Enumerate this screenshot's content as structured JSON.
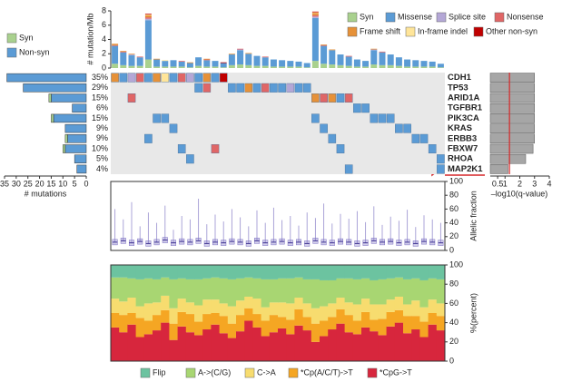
{
  "chart_data": [
    {
      "type": "bar",
      "ylabel": "# mutation/Mb",
      "ylim": [
        0,
        8
      ],
      "yticks": [
        0,
        2,
        4,
        6,
        8
      ],
      "series": [
        {
          "name": "Syn",
          "color": "#a9d18e",
          "values": [
            0.6,
            0.4,
            0.3,
            0.3,
            1.2,
            0.2,
            0.2,
            0.2,
            0.2,
            0.1,
            0.3,
            0.2,
            0.2,
            0.1,
            0.4,
            0.5,
            0.4,
            0.3,
            0.3,
            0.2,
            0.2,
            0.2,
            0.2,
            0.1,
            1.0,
            0.6,
            0.5,
            0.4,
            0.3,
            0.2,
            0.2,
            0.5,
            0.4,
            0.4,
            0.3,
            0.2,
            0.2,
            0.2,
            0.2,
            0.1
          ]
        },
        {
          "name": "Missense",
          "color": "#5b9bd5",
          "values": [
            2.5,
            1.8,
            1.5,
            1.2,
            5.5,
            1.0,
            0.8,
            0.9,
            0.7,
            0.6,
            1.2,
            0.9,
            0.8,
            0.6,
            1.5,
            2.0,
            1.6,
            1.4,
            1.2,
            1.0,
            0.9,
            0.8,
            0.7,
            0.6,
            6.0,
            2.5,
            2.0,
            1.5,
            1.3,
            1.0,
            0.8,
            2.0,
            1.8,
            1.5,
            1.2,
            1.0,
            0.9,
            0.8,
            0.7,
            0.5
          ]
        },
        {
          "name": "Splice site",
          "color": "#b4a7d6",
          "values": [
            0,
            0,
            0.1,
            0,
            0.2,
            0,
            0,
            0,
            0,
            0,
            0,
            0,
            0,
            0,
            0,
            0.1,
            0,
            0,
            0,
            0,
            0,
            0,
            0,
            0,
            0.2,
            0,
            0,
            0,
            0,
            0,
            0,
            0.1,
            0,
            0,
            0,
            0,
            0,
            0,
            0,
            0
          ]
        },
        {
          "name": "Nonsense",
          "color": "#e06666",
          "values": [
            0.1,
            0.1,
            0,
            0.1,
            0.2,
            0,
            0,
            0,
            0.1,
            0,
            0,
            0.1,
            0,
            0,
            0,
            0.1,
            0,
            0,
            0.1,
            0,
            0,
            0,
            0,
            0,
            0.2,
            0.1,
            0,
            0,
            0.1,
            0,
            0,
            0,
            0.1,
            0,
            0,
            0,
            0,
            0,
            0,
            0
          ]
        },
        {
          "name": "Frame shift",
          "color": "#e69138",
          "values": [
            0.2,
            0.1,
            0.1,
            0,
            0.3,
            0.1,
            0,
            0,
            0,
            0.1,
            0,
            0.1,
            0,
            0,
            0.1,
            0,
            0.1,
            0,
            0,
            0,
            0,
            0,
            0,
            0,
            0.3,
            0.1,
            0.1,
            0,
            0,
            0,
            0,
            0.1,
            0,
            0,
            0,
            0,
            0,
            0,
            0,
            0
          ]
        },
        {
          "name": "In-frame indel",
          "color": "#ffe599",
          "values": [
            0,
            0,
            0,
            0,
            0.1,
            0,
            0.1,
            0,
            0,
            0,
            0,
            0,
            0,
            0,
            0,
            0,
            0,
            0,
            0,
            0,
            0,
            0,
            0,
            0,
            0.1,
            0,
            0,
            0,
            0,
            0,
            0,
            0,
            0,
            0,
            0,
            0,
            0,
            0,
            0,
            0
          ]
        },
        {
          "name": "Other non-syn",
          "color": "#c00000",
          "values": [
            0,
            0,
            0,
            0,
            0.1,
            0,
            0,
            0,
            0,
            0,
            0,
            0,
            0,
            0.1,
            0,
            0,
            0,
            0,
            0,
            0,
            0,
            0,
            0,
            0,
            0.1,
            0,
            0,
            0,
            0,
            0,
            0,
            0,
            0,
            0,
            0,
            0,
            0,
            0,
            0,
            0
          ]
        }
      ]
    },
    {
      "type": "heatmap",
      "background": "#e8e8e8",
      "categories": [
        "CDH1",
        "TP53",
        "ARID1A",
        "TGFBR1",
        "PIK3CA",
        "KRAS",
        "ERBB3",
        "FBXW7",
        "RHOA",
        "MAP2K1"
      ],
      "values": [
        35,
        29,
        15,
        6,
        15,
        9,
        9,
        10,
        5,
        4
      ],
      "value_labels": [
        "35%",
        "29%",
        "15%",
        "6%",
        "15%",
        "9%",
        "9%",
        "10%",
        "5%",
        "4%"
      ],
      "matrix": [
        [
          "Frame shift",
          "Missense",
          "Splice site",
          "Nonsense",
          "Missense",
          "Frame shift",
          "In-frame indel",
          "Missense",
          "Nonsense",
          "Splice site",
          "Missense",
          "Frame shift",
          "Missense",
          "Other non-syn",
          null,
          null,
          null,
          null,
          null,
          null,
          null,
          null,
          null,
          null,
          null,
          null,
          null,
          null,
          null,
          null,
          null,
          null,
          null,
          null,
          null,
          null,
          null,
          null,
          null,
          null
        ],
        [
          null,
          null,
          null,
          null,
          null,
          null,
          null,
          null,
          null,
          null,
          "Missense",
          "Nonsense",
          null,
          null,
          "Missense",
          "Missense",
          "Frame shift",
          "Missense",
          "Nonsense",
          "Missense",
          "Missense",
          "Splice site",
          "Missense",
          "Missense",
          null,
          null,
          null,
          null,
          null,
          null,
          null,
          null,
          null,
          null,
          null,
          null,
          null,
          null,
          null,
          null
        ],
        [
          null,
          null,
          "Nonsense",
          null,
          null,
          null,
          null,
          null,
          null,
          null,
          null,
          null,
          null,
          null,
          null,
          null,
          null,
          null,
          null,
          null,
          null,
          null,
          null,
          null,
          "Frame shift",
          "Nonsense",
          "Frame shift",
          "Missense",
          "Nonsense",
          null,
          null,
          null,
          null,
          null,
          null,
          null,
          null,
          null,
          null,
          null
        ],
        [
          null,
          null,
          null,
          null,
          null,
          null,
          null,
          null,
          null,
          null,
          null,
          null,
          null,
          null,
          null,
          null,
          null,
          null,
          null,
          null,
          null,
          null,
          null,
          null,
          null,
          null,
          null,
          null,
          null,
          "Missense",
          "Missense",
          null,
          null,
          null,
          null,
          null,
          null,
          null,
          null,
          null
        ],
        [
          null,
          null,
          null,
          null,
          null,
          "Missense",
          "Missense",
          null,
          null,
          null,
          null,
          null,
          null,
          null,
          null,
          null,
          null,
          null,
          null,
          null,
          null,
          null,
          null,
          null,
          "Missense",
          null,
          null,
          null,
          null,
          null,
          null,
          "Missense",
          "Missense",
          "Missense",
          null,
          null,
          null,
          null,
          null,
          null
        ],
        [
          null,
          null,
          null,
          null,
          null,
          null,
          null,
          "Missense",
          null,
          null,
          null,
          null,
          null,
          null,
          null,
          null,
          null,
          null,
          null,
          null,
          null,
          null,
          null,
          null,
          null,
          "Missense",
          null,
          null,
          null,
          null,
          null,
          null,
          null,
          null,
          "Missense",
          "Missense",
          null,
          null,
          null,
          null
        ],
        [
          null,
          null,
          null,
          null,
          "Missense",
          null,
          null,
          null,
          null,
          null,
          null,
          null,
          null,
          null,
          null,
          null,
          null,
          null,
          null,
          null,
          null,
          null,
          null,
          null,
          null,
          null,
          "Missense",
          null,
          null,
          null,
          null,
          null,
          null,
          null,
          null,
          null,
          "Missense",
          "Missense",
          null,
          null
        ],
        [
          null,
          null,
          null,
          null,
          null,
          null,
          null,
          null,
          "Missense",
          null,
          null,
          null,
          "Nonsense",
          null,
          null,
          null,
          null,
          null,
          null,
          null,
          null,
          null,
          null,
          null,
          null,
          null,
          null,
          "Missense",
          null,
          null,
          null,
          null,
          null,
          null,
          null,
          null,
          null,
          null,
          "Missense",
          null
        ],
        [
          null,
          null,
          null,
          null,
          null,
          null,
          null,
          null,
          null,
          "Missense",
          null,
          null,
          null,
          null,
          null,
          null,
          null,
          null,
          null,
          null,
          null,
          null,
          null,
          null,
          null,
          null,
          null,
          null,
          null,
          null,
          null,
          null,
          null,
          null,
          null,
          null,
          null,
          null,
          null,
          "Missense"
        ],
        [
          null,
          null,
          null,
          null,
          null,
          null,
          null,
          null,
          null,
          null,
          null,
          null,
          null,
          null,
          null,
          null,
          null,
          null,
          null,
          null,
          null,
          null,
          null,
          null,
          null,
          null,
          null,
          null,
          "Missense",
          null,
          null,
          null,
          null,
          null,
          null,
          null,
          null,
          null,
          null,
          "Missense"
        ]
      ]
    },
    {
      "type": "bar",
      "orientation": "horizontal",
      "xlabel": "# mutations",
      "xlim": [
        35,
        0
      ],
      "xticks": [
        35,
        30,
        25,
        20,
        15,
        10,
        5,
        0
      ],
      "series": [
        {
          "name": "Syn",
          "color": "#a9d18e",
          "values": [
            0,
            0,
            1,
            0,
            1,
            0,
            1,
            1,
            0,
            0
          ]
        },
        {
          "name": "Non-syn",
          "color": "#5b9bd5",
          "values": [
            34,
            27,
            15,
            6,
            14,
            9,
            8,
            9,
            5,
            4
          ]
        }
      ]
    },
    {
      "type": "bar",
      "orientation": "horizontal",
      "xlabel": "–log10(q-value)",
      "xlim": [
        0,
        4
      ],
      "xticks": [
        0.5,
        1,
        2,
        3,
        4
      ],
      "color": "#a6a6a6",
      "values": [
        3.0,
        3.0,
        3.0,
        3.0,
        3.0,
        3.0,
        3.0,
        2.9,
        2.4,
        1.2
      ],
      "threshold": 1.3,
      "threshold_color": "#d62728"
    },
    {
      "type": "box",
      "ylabel": "Allelic fraction",
      "ylim": [
        0,
        100
      ],
      "yticks": [
        0,
        20,
        40,
        60,
        80,
        100
      ],
      "color": "#7b6fc2",
      "median": [
        12,
        14,
        11,
        13,
        10,
        12,
        15,
        11,
        13,
        12,
        14,
        10,
        12,
        11,
        13,
        12,
        10,
        14,
        11,
        12,
        13,
        11,
        12,
        10,
        14,
        12,
        11,
        13,
        12,
        10,
        11,
        14,
        12,
        13,
        11,
        12,
        10,
        13,
        12,
        11
      ],
      "max": [
        60,
        45,
        70,
        35,
        55,
        40,
        65,
        30,
        50,
        45,
        75,
        38,
        52,
        42,
        60,
        48,
        35,
        58,
        40,
        62,
        44,
        50,
        36,
        55,
        47,
        68,
        39,
        53,
        46,
        57,
        41,
        64,
        37,
        49,
        43,
        59,
        34,
        51,
        45,
        40
      ]
    },
    {
      "type": "bar",
      "ylabel": "%(percent)",
      "ylim": [
        0,
        100
      ],
      "yticks": [
        0,
        20,
        40,
        60,
        80,
        100
      ],
      "series": [
        {
          "name": "*CpG->T",
          "color": "#d7263d",
          "values": [
            35,
            30,
            38,
            25,
            28,
            32,
            40,
            22,
            36,
            30,
            27,
            33,
            38,
            29,
            24,
            31,
            42,
            35,
            26,
            30,
            34,
            28,
            37,
            32,
            20,
            26,
            33,
            39,
            30,
            28,
            35,
            31,
            27,
            36,
            40,
            29,
            33,
            25,
            38,
            32
          ]
        },
        {
          "name": "*Cp(A/C/T)->T",
          "color": "#f5a623",
          "values": [
            15,
            18,
            12,
            20,
            14,
            16,
            13,
            17,
            15,
            19,
            14,
            16,
            12,
            18,
            15,
            17,
            13,
            14,
            16,
            18,
            12,
            15,
            17,
            14,
            19,
            16,
            13,
            15,
            18,
            14,
            16,
            12,
            17,
            15,
            13,
            18,
            14,
            16,
            12,
            15
          ]
        },
        {
          "name": "C->A",
          "color": "#f7dc6f",
          "values": [
            15,
            14,
            16,
            12,
            18,
            13,
            15,
            16,
            14,
            12,
            17,
            15,
            14,
            13,
            18,
            15,
            12,
            16,
            14,
            13,
            15,
            17,
            12,
            14,
            16,
            15,
            14,
            12,
            13,
            17,
            14,
            16,
            15,
            13,
            14,
            12,
            16,
            15,
            14,
            13
          ]
        },
        {
          "name": "A->(C/G)",
          "color": "#a8d672",
          "values": [
            22,
            25,
            20,
            28,
            26,
            24,
            19,
            30,
            21,
            24,
            27,
            22,
            23,
            26,
            28,
            23,
            20,
            21,
            29,
            24,
            25,
            26,
            21,
            25,
            30,
            27,
            24,
            20,
            25,
            26,
            21,
            25,
            26,
            22,
            20,
            26,
            23,
            28,
            22,
            25
          ]
        },
        {
          "name": "Flip",
          "color": "#6cc3a0",
          "values": [
            13,
            13,
            14,
            15,
            14,
            15,
            13,
            15,
            14,
            15,
            15,
            14,
            13,
            14,
            15,
            14,
            13,
            14,
            15,
            15,
            14,
            14,
            13,
            15,
            15,
            16,
            16,
            14,
            14,
            15,
            14,
            16,
            15,
            14,
            13,
            15,
            14,
            16,
            14,
            15
          ]
        }
      ]
    }
  ]
}
